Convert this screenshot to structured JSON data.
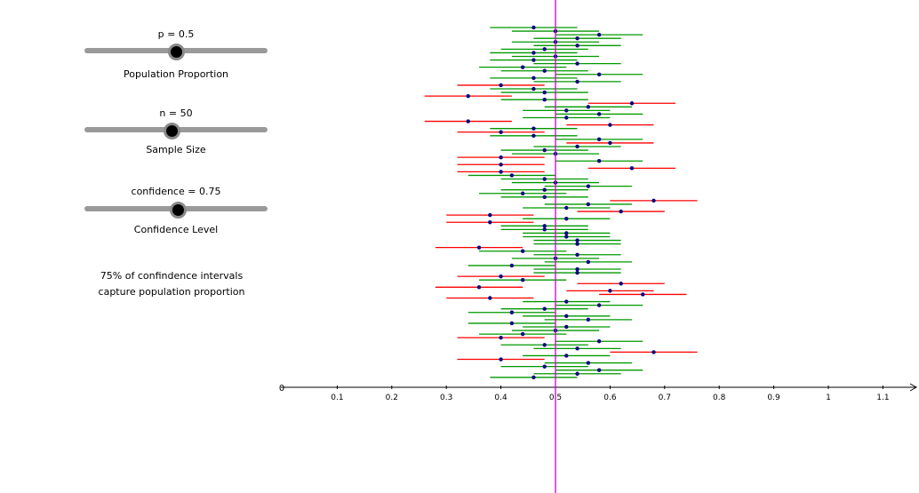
{
  "sliders": {
    "proportion": {
      "value_text": "p = 0.5",
      "label": "Population Proportion",
      "value": 0.5,
      "min": 0,
      "max": 1
    },
    "sample_size": {
      "value_text": "n = 50",
      "label": "Sample Size",
      "value": 50,
      "min": 1,
      "max": 100
    },
    "confidence": {
      "value_text": "confidence = 0.75",
      "label": "Confidence Level",
      "value": 0.75,
      "min": 0,
      "max": 1
    }
  },
  "summary": {
    "line1": "75% of confindence intervals",
    "line2": "capture population proportion"
  },
  "colors": {
    "capture": "#009900",
    "miss": "#ff0000",
    "point": "#000080",
    "true_line": "#cc00cc",
    "slider_track": "#9a9a9a",
    "axis": "#000000"
  },
  "chart_data": {
    "type": "scatter",
    "title": "",
    "xlabel": "",
    "ylabel": "",
    "xlim": [
      0,
      1.15
    ],
    "x_ticks": [
      "0",
      "0.1",
      "0.2",
      "0.3",
      "0.4",
      "0.5",
      "0.6",
      "0.7",
      "0.8",
      "0.9",
      "1",
      "1.1"
    ],
    "true_proportion": 0.5,
    "margin_of_error_note": "intervals are p-hat ± 0.08",
    "sample_proportions": [
      0.46,
      0.5,
      0.58,
      0.54,
      0.5,
      0.54,
      0.48,
      0.46,
      0.5,
      0.46,
      0.54,
      0.44,
      0.48,
      0.58,
      0.46,
      0.54,
      0.4,
      0.46,
      0.48,
      0.34,
      0.48,
      0.64,
      0.56,
      0.52,
      0.58,
      0.52,
      0.34,
      0.6,
      0.46,
      0.4,
      0.46,
      0.58,
      0.6,
      0.54,
      0.48,
      0.5,
      0.4,
      0.58,
      0.4,
      0.64,
      0.4,
      0.42,
      0.48,
      0.5,
      0.56,
      0.48,
      0.44,
      0.48,
      0.68,
      0.56,
      0.52,
      0.62,
      0.38,
      0.52,
      0.38,
      0.48,
      0.48,
      0.52,
      0.52,
      0.54,
      0.54,
      0.36,
      0.44,
      0.54,
      0.5,
      0.56,
      0.42,
      0.54,
      0.54,
      0.4,
      0.44,
      0.62,
      0.36,
      0.6,
      0.66,
      0.38,
      0.52,
      0.58,
      0.48,
      0.42,
      0.52,
      0.56,
      0.42,
      0.52,
      0.5,
      0.44,
      0.4,
      0.58,
      0.48,
      0.54,
      0.68,
      0.52,
      0.4,
      0.56,
      0.48,
      0.58,
      0.54,
      0.46
    ],
    "half_width": 0.08
  }
}
